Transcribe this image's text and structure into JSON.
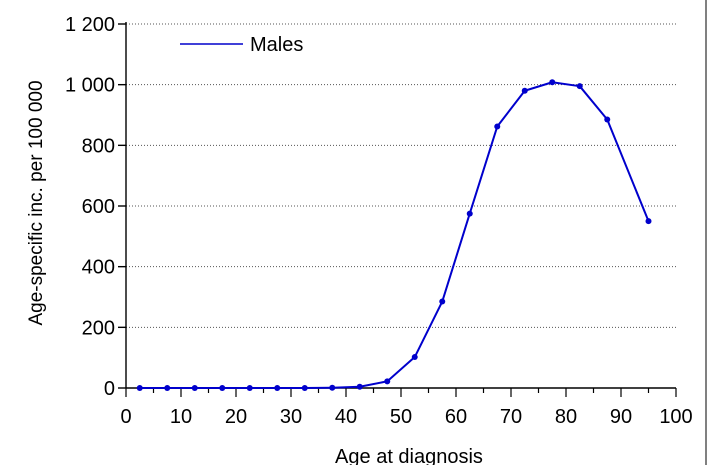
{
  "chart_data": {
    "type": "line",
    "title": "",
    "xlabel": "Age at diagnosis",
    "ylabel": "Age-specific inc. per 100 000",
    "xlim": [
      0,
      100
    ],
    "ylim": [
      0,
      1200
    ],
    "x_ticks": [
      0,
      10,
      20,
      30,
      40,
      50,
      60,
      70,
      80,
      90,
      100
    ],
    "x_tick_labels": [
      "0",
      "10",
      "20",
      "30",
      "40",
      "50",
      "60",
      "70",
      "80",
      "90",
      "100"
    ],
    "y_ticks": [
      0,
      200,
      400,
      600,
      800,
      1000,
      1200
    ],
    "y_tick_labels": [
      "0",
      "200",
      "400",
      "600",
      "800",
      "1 000",
      "1 200"
    ],
    "grid": "horizontal dotted",
    "legend_position": "top-left",
    "series": [
      {
        "name": "Males",
        "color": "#0000cc",
        "x": [
          2.5,
          7.5,
          12.5,
          17.5,
          22.5,
          27.5,
          32.5,
          37.5,
          42.5,
          47.5,
          52.5,
          57.5,
          62.5,
          67.5,
          72.5,
          77.5,
          82.5,
          87.5,
          95
        ],
        "values": [
          0,
          0,
          0,
          0,
          0,
          0,
          0,
          1,
          4,
          22,
          102,
          285,
          575,
          862,
          980,
          1008,
          995,
          885,
          550
        ]
      }
    ]
  }
}
